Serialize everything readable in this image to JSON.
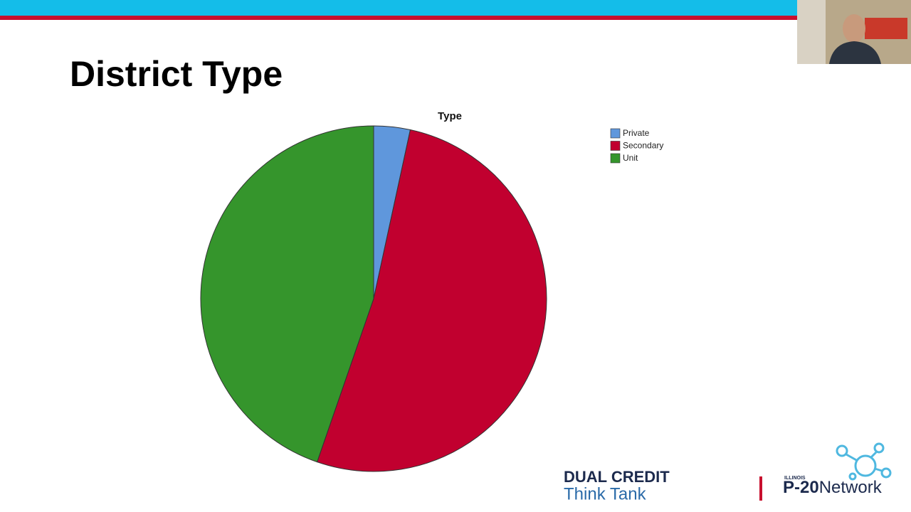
{
  "slide": {
    "title": "District Type",
    "logo_left": {
      "line1": "DUAL CREDIT",
      "line2": "Think Tank"
    },
    "logo_right": {
      "state": "ILLINOIS",
      "bold": "P-20",
      "light": "Network"
    }
  },
  "chart_data": {
    "type": "pie",
    "title": "Type",
    "categories": [
      "Private",
      "Secondary",
      "Unit"
    ],
    "values": [
      3.4,
      51.9,
      44.7
    ],
    "colors": [
      "#5f97dc",
      "#c1002f",
      "#35952c"
    ],
    "legend": "top-right"
  }
}
